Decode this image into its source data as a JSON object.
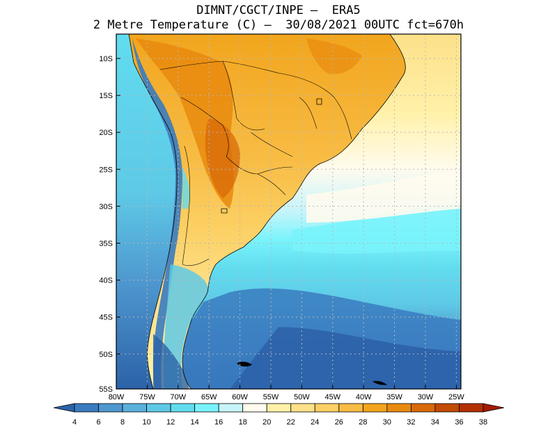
{
  "title_line1": "DIMNT/CGCT/INPE –  ERA5",
  "title_line2": "2 Metre Temperature (C) –  30/08/2021 00UTC fct=670h",
  "lat_labels": [
    "10S",
    "15S",
    "20S",
    "25S",
    "30S",
    "35S",
    "40S",
    "45S",
    "50S",
    "55S"
  ],
  "lon_labels": [
    "80W",
    "75W",
    "70W",
    "65W",
    "60W",
    "55W",
    "50W",
    "45W",
    "40W",
    "35W",
    "30W",
    "25W"
  ],
  "colorbar": {
    "labels": [
      "4",
      "6",
      "8",
      "10",
      "12",
      "14",
      "16",
      "18",
      "20",
      "22",
      "24",
      "26",
      "28",
      "30",
      "32",
      "34",
      "36",
      "38"
    ],
    "colors": [
      "#2c62a8",
      "#3a7bbf",
      "#4e97cf",
      "#5ab1dc",
      "#5ec9e6",
      "#61dcef",
      "#79f3fb",
      "#c7f4fb",
      "#fffbee",
      "#fff1a8",
      "#fde089",
      "#fcd064",
      "#f8bc44",
      "#f2a51d",
      "#e88a0e",
      "#d86a08",
      "#c24a05",
      "#b23004",
      "#a31b02"
    ]
  },
  "colors": {
    "ocean_cold": "#2f6fb3",
    "ocean_mid": "#5ac7e5",
    "ocean_warm": "#fff7dd",
    "land_hot": "#e88a1a",
    "land_warm": "#f6b845",
    "andes_cold": "#2f6fb3"
  }
}
